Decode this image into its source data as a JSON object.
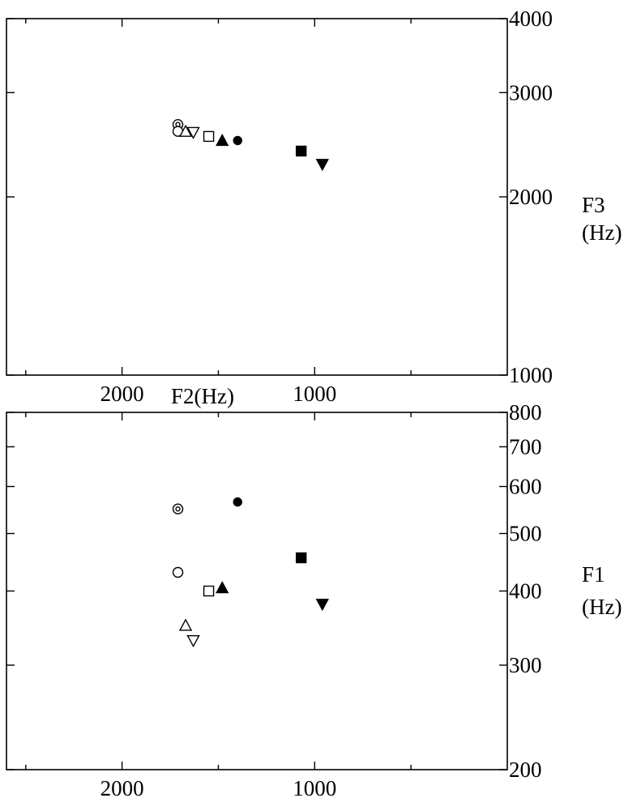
{
  "chart_data": [
    {
      "type": "scatter",
      "id": "f2-f3-panel",
      "xlabel": "F2(Hz)",
      "ylabel_lines": [
        "F3",
        "(Hz)"
      ],
      "x_axis": {
        "reversed": true,
        "lim": [
          2600,
          0
        ],
        "tick_labels": [
          "2000",
          "1000"
        ],
        "tick_values": [
          2000,
          1000
        ],
        "minor_ticks": [
          2500,
          1500,
          500
        ]
      },
      "y_axis": {
        "scale": "log",
        "lim": [
          1000,
          4000
        ],
        "tick_labels": [
          "4000",
          "3000",
          "2000",
          "1000"
        ],
        "tick_values": [
          4000,
          3000,
          2000,
          1000
        ]
      },
      "points": [
        {
          "marker": "circle-dot-open",
          "x": 1710,
          "y": 2650
        },
        {
          "marker": "circle-open",
          "x": 1710,
          "y": 2580
        },
        {
          "marker": "triangle-up-open",
          "x": 1670,
          "y": 2580
        },
        {
          "marker": "triangle-down-open",
          "x": 1630,
          "y": 2570
        },
        {
          "marker": "square-open",
          "x": 1550,
          "y": 2530
        },
        {
          "marker": "triangle-up-filled",
          "x": 1480,
          "y": 2490
        },
        {
          "marker": "circle-filled",
          "x": 1400,
          "y": 2490
        },
        {
          "marker": "square-filled",
          "x": 1070,
          "y": 2390
        },
        {
          "marker": "triangle-down-filled",
          "x": 960,
          "y": 2270
        }
      ]
    },
    {
      "type": "scatter",
      "id": "f2-f1-panel",
      "xlabel": "",
      "ylabel_lines": [
        "F1",
        "(Hz)"
      ],
      "x_axis": {
        "reversed": true,
        "lim": [
          2600,
          0
        ],
        "tick_labels": [
          "2000",
          "1000"
        ],
        "tick_values": [
          2000,
          1000
        ],
        "minor_ticks": [
          2500,
          1500,
          500
        ]
      },
      "y_axis": {
        "scale": "log",
        "lim": [
          200,
          800
        ],
        "tick_labels": [
          "200",
          "300",
          "400",
          "500",
          "600",
          "700",
          "800"
        ],
        "tick_values": [
          200,
          300,
          400,
          500,
          600,
          700,
          800
        ]
      },
      "points": [
        {
          "marker": "triangle-down-open",
          "x": 1630,
          "y": 330
        },
        {
          "marker": "triangle-up-open",
          "x": 1670,
          "y": 350
        },
        {
          "marker": "square-open",
          "x": 1550,
          "y": 400
        },
        {
          "marker": "triangle-up-filled",
          "x": 1480,
          "y": 405
        },
        {
          "marker": "triangle-down-filled",
          "x": 960,
          "y": 380
        },
        {
          "marker": "circle-open",
          "x": 1710,
          "y": 430
        },
        {
          "marker": "square-filled",
          "x": 1070,
          "y": 455
        },
        {
          "marker": "circle-dot-open",
          "x": 1710,
          "y": 550
        },
        {
          "marker": "circle-filled",
          "x": 1400,
          "y": 565
        }
      ]
    }
  ]
}
